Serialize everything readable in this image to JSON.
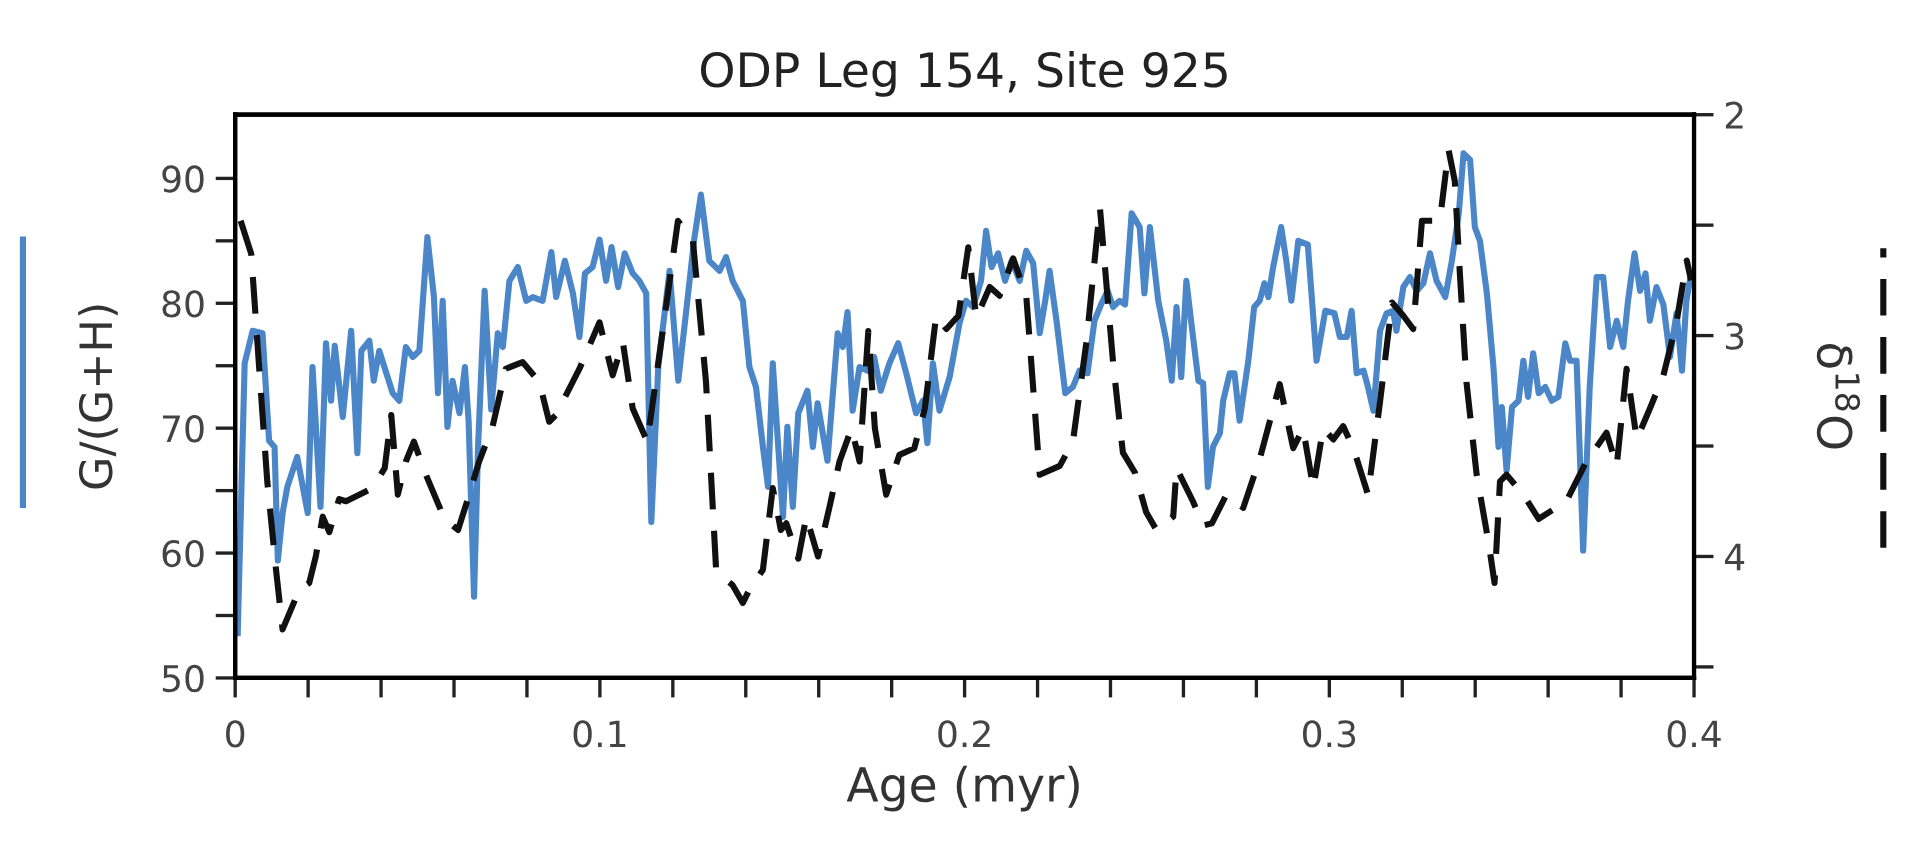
{
  "chart_data": {
    "type": "line",
    "title": "ODP Leg 154, Site 925",
    "xlabel": "Age (myr)",
    "ylabel": "G/(G+H)",
    "y2label": "δ$^{18}$O",
    "xlim": [
      0,
      0.4
    ],
    "xticks": [
      0,
      {
        "value": 0.02,
        "label": null
      },
      {
        "value": 0.04,
        "label": null
      },
      {
        "value": 0.06,
        "label": null
      },
      {
        "value": 0.08,
        "label": null
      },
      0.1,
      {
        "value": 0.12,
        "label": null
      },
      {
        "value": 0.14,
        "label": null
      },
      {
        "value": 0.16,
        "label": null
      },
      {
        "value": 0.18,
        "label": null
      },
      0.2,
      {
        "value": 0.22,
        "label": null
      },
      {
        "value": 0.24,
        "label": null
      },
      {
        "value": 0.26,
        "label": null
      },
      {
        "value": 0.28,
        "label": null
      },
      0.3,
      {
        "value": 0.32,
        "label": null
      },
      {
        "value": 0.34,
        "label": null
      },
      {
        "value": 0.36,
        "label": null
      },
      {
        "value": 0.38,
        "label": null
      },
      0.4
    ],
    "ylim": [
      50,
      95.1
    ],
    "yticks": [
      50,
      {
        "value": 55,
        "label": null
      },
      60,
      {
        "value": 65,
        "label": null
      },
      70,
      {
        "value": 75,
        "label": null
      },
      80,
      {
        "value": 85,
        "label": null
      },
      90
    ],
    "y2lim": [
      4.55,
      2
    ],
    "y2ticks": [
      2,
      {
        "value": 2.5,
        "label": null
      },
      3,
      {
        "value": 3.5,
        "label": null
      },
      4,
      {
        "value": 4.5,
        "label": null
      }
    ],
    "grid": false,
    "legend": false,
    "marker": "none",
    "series": [
      {
        "color": "#4a86c8",
        "axis": "y",
        "line_style": "solid",
        "x": [
          0.0007,
          0.0026,
          0.0048,
          0.0075,
          0.0093,
          0.0108,
          0.0117,
          0.013,
          0.0143,
          0.017,
          0.0199,
          0.0212,
          0.0234,
          0.0249,
          0.0263,
          0.0273,
          0.0295,
          0.0318,
          0.0335,
          0.0346,
          0.0368,
          0.038,
          0.0395,
          0.0432,
          0.045,
          0.0468,
          0.0487,
          0.0505,
          0.0527,
          0.0545,
          0.0556,
          0.0569,
          0.0582,
          0.0596,
          0.0615,
          0.063,
          0.064,
          0.0655,
          0.0666,
          0.0684,
          0.0702,
          0.072,
          0.0734,
          0.0752,
          0.0775,
          0.0798,
          0.0816,
          0.0843,
          0.0867,
          0.088,
          0.0904,
          0.0926,
          0.0944,
          0.0959,
          0.098,
          0.0999,
          0.1017,
          0.1032,
          0.105,
          0.1068,
          0.109,
          0.1108,
          0.1127,
          0.1141,
          0.116,
          0.1191,
          0.1215,
          0.1236,
          0.1258,
          0.1277,
          0.13,
          0.1328,
          0.1346,
          0.1364,
          0.1392,
          0.141,
          0.1428,
          0.1447,
          0.1461,
          0.1474,
          0.1489,
          0.1502,
          0.1514,
          0.1529,
          0.1544,
          0.1569,
          0.1584,
          0.1597,
          0.1624,
          0.1652,
          0.1666,
          0.1679,
          0.1693,
          0.1712,
          0.1734,
          0.1752,
          0.177,
          0.1794,
          0.1818,
          0.184,
          0.1867,
          0.1886,
          0.1898,
          0.1913,
          0.1931,
          0.1959,
          0.1986,
          0.2004,
          0.2023,
          0.2045,
          0.2059,
          0.2074,
          0.2092,
          0.2111,
          0.2129,
          0.2151,
          0.2169,
          0.2188,
          0.2206,
          0.2221,
          0.2233,
          0.2252,
          0.2276,
          0.2297,
          0.2315,
          0.2337,
          0.2356,
          0.2374,
          0.2392,
          0.2407,
          0.2425,
          0.244,
          0.2458,
          0.248,
          0.2493,
          0.2508,
          0.2531,
          0.2553,
          0.2568,
          0.2581,
          0.2594,
          0.2608,
          0.2623,
          0.2641,
          0.2654,
          0.2667,
          0.2681,
          0.27,
          0.2709,
          0.2727,
          0.274,
          0.2754,
          0.2778,
          0.2794,
          0.2809,
          0.2822,
          0.2833,
          0.2846,
          0.2868,
          0.2882,
          0.2896,
          0.2915,
          0.2941,
          0.2965,
          0.2989,
          0.3014,
          0.3029,
          0.3048,
          0.3061,
          0.3075,
          0.3094,
          0.3106,
          0.3121,
          0.3139,
          0.3157,
          0.3175,
          0.3184,
          0.3203,
          0.3221,
          0.324,
          0.3258,
          0.3276,
          0.3294,
          0.3318,
          0.3336,
          0.3355,
          0.3368,
          0.3386,
          0.3399,
          0.3413,
          0.3432,
          0.345,
          0.3464,
          0.3473,
          0.3486,
          0.3501,
          0.3519,
          0.3532,
          0.3545,
          0.3559,
          0.3574,
          0.3592,
          0.361,
          0.3628,
          0.3647,
          0.366,
          0.3678,
          0.3696,
          0.3714,
          0.3733,
          0.3751,
          0.377,
          0.3788,
          0.3806,
          0.3819,
          0.3837,
          0.3852,
          0.3867,
          0.3879,
          0.3897,
          0.3916,
          0.3934,
          0.3952,
          0.3967,
          0.3979,
          0.3992
        ],
        "values": [
          53.6,
          75.2,
          77.8,
          77.6,
          69.0,
          68.5,
          59.4,
          63.2,
          65.3,
          67.7,
          63.2,
          74.9,
          63.7,
          76.8,
          72.2,
          76.6,
          70.9,
          77.8,
          68.0,
          76.2,
          77.0,
          73.8,
          76.2,
          72.8,
          72.2,
          76.5,
          75.7,
          76.2,
          85.3,
          80.5,
          72.8,
          80.2,
          70.1,
          73.8,
          71.2,
          74.9,
          70.6,
          56.5,
          68.5,
          81.0,
          71.5,
          77.6,
          76.5,
          81.8,
          82.9,
          80.2,
          80.5,
          80.2,
          84.1,
          80.5,
          83.4,
          80.8,
          77.3,
          82.4,
          82.9,
          85.1,
          81.8,
          84.5,
          81.3,
          84.0,
          82.4,
          81.8,
          80.8,
          62.5,
          74.9,
          82.6,
          73.8,
          79.2,
          85.0,
          88.7,
          83.4,
          82.6,
          83.7,
          81.8,
          80.2,
          74.9,
          73.3,
          68.5,
          65.3,
          75.2,
          68.5,
          62.9,
          70.1,
          63.7,
          71.2,
          73.0,
          68.5,
          72.0,
          67.4,
          77.6,
          76.5,
          79.3,
          71.4,
          74.9,
          74.6,
          75.7,
          73.0,
          75.2,
          76.8,
          74.4,
          71.2,
          72.2,
          68.8,
          75.2,
          71.4,
          74.1,
          78.4,
          80.2,
          79.7,
          81.8,
          85.8,
          82.9,
          84.0,
          81.8,
          83.4,
          81.8,
          84.2,
          83.2,
          77.6,
          80.2,
          82.6,
          78.6,
          72.8,
          73.3,
          74.6,
          74.4,
          78.6,
          79.9,
          81.0,
          79.7,
          80.2,
          79.9,
          87.2,
          86.1,
          80.8,
          86.1,
          80.2,
          77.0,
          73.8,
          79.7,
          74.1,
          81.8,
          78.1,
          73.8,
          73.6,
          65.3,
          68.5,
          69.6,
          72.2,
          74.4,
          74.4,
          70.6,
          75.4,
          79.7,
          80.2,
          81.6,
          80.5,
          82.9,
          86.1,
          83.4,
          80.2,
          85.0,
          84.7,
          75.4,
          79.4,
          79.2,
          77.3,
          77.3,
          79.4,
          74.4,
          74.6,
          73.3,
          71.4,
          77.8,
          79.2,
          79.4,
          77.8,
          81.3,
          82.1,
          81.0,
          81.6,
          84.0,
          81.8,
          80.5,
          83.4,
          87.2,
          92.0,
          91.5,
          86.1,
          85.0,
          80.8,
          74.9,
          68.5,
          71.7,
          66.6,
          71.7,
          72.2,
          75.4,
          72.5,
          76.0,
          72.8,
          73.3,
          72.2,
          72.5,
          76.8,
          75.4,
          75.4,
          60.2,
          73.3,
          82.1,
          82.1,
          76.5,
          78.6,
          76.5,
          80.2,
          84.0,
          81.0,
          82.4,
          78.6,
          81.3,
          79.9,
          75.7,
          79.2,
          74.6,
          80.2,
          82.4
        ]
      },
      {
        "color": "#111111",
        "axis": "y2",
        "line_style": "dashed",
        "x": [
          0.0015,
          0.0044,
          0.0066,
          0.0088,
          0.0112,
          0.013,
          0.0176,
          0.0203,
          0.0221,
          0.024,
          0.0258,
          0.0285,
          0.0304,
          0.0377,
          0.041,
          0.0428,
          0.0446,
          0.0468,
          0.049,
          0.0523,
          0.0574,
          0.0611,
          0.0636,
          0.0669,
          0.0706,
          0.0742,
          0.0788,
          0.0834,
          0.0861,
          0.0879,
          0.0944,
          0.0999,
          0.1035,
          0.1063,
          0.109,
          0.113,
          0.1173,
          0.1214,
          0.1255,
          0.1291,
          0.1319,
          0.1364,
          0.1392,
          0.141,
          0.1447,
          0.1474,
          0.1496,
          0.1511,
          0.1544,
          0.1566,
          0.1598,
          0.1629,
          0.1657,
          0.169,
          0.1712,
          0.1736,
          0.1754,
          0.1785,
          0.1821,
          0.1862,
          0.1891,
          0.1922,
          0.195,
          0.1983,
          0.201,
          0.2032,
          0.2069,
          0.2096,
          0.2133,
          0.2169,
          0.2206,
          0.2261,
          0.2297,
          0.2334,
          0.2371,
          0.2407,
          0.2434,
          0.2467,
          0.2498,
          0.2526,
          0.2572,
          0.2581,
          0.2626,
          0.2654,
          0.2678,
          0.2718,
          0.2764,
          0.2809,
          0.2864,
          0.2901,
          0.2928,
          0.2956,
          0.2983,
          0.3011,
          0.3038,
          0.3066,
          0.3106,
          0.3139,
          0.3172,
          0.3203,
          0.323,
          0.3254,
          0.3303,
          0.3327,
          0.3344,
          0.3358,
          0.3376,
          0.3404,
          0.3437,
          0.3453,
          0.3468,
          0.3486,
          0.3532,
          0.3574,
          0.365,
          0.3705,
          0.376,
          0.3788,
          0.3815,
          0.3843,
          0.3879,
          0.3916,
          0.3952,
          0.398,
          0.3992
        ],
        "values": [
          2.48,
          2.63,
          3.15,
          3.66,
          4.06,
          4.33,
          4.15,
          4.12,
          4.0,
          3.82,
          3.89,
          3.74,
          3.75,
          3.69,
          3.6,
          3.36,
          3.72,
          3.57,
          3.48,
          3.63,
          3.83,
          3.88,
          3.75,
          3.57,
          3.41,
          3.15,
          3.12,
          3.21,
          3.39,
          3.36,
          3.15,
          2.94,
          3.18,
          3.03,
          3.33,
          3.48,
          2.97,
          2.48,
          2.57,
          3.21,
          4.07,
          4.13,
          4.21,
          4.15,
          4.06,
          3.69,
          3.88,
          3.85,
          4.01,
          3.82,
          4.0,
          3.78,
          3.57,
          3.42,
          3.57,
          2.98,
          3.42,
          3.72,
          3.54,
          3.51,
          3.33,
          2.91,
          2.97,
          2.91,
          2.6,
          2.92,
          2.78,
          2.82,
          2.65,
          2.82,
          3.63,
          3.59,
          3.48,
          3.03,
          2.42,
          3.12,
          3.53,
          3.62,
          3.8,
          3.88,
          3.82,
          3.6,
          3.75,
          3.86,
          3.85,
          3.72,
          3.78,
          3.56,
          3.22,
          3.51,
          3.42,
          3.69,
          3.42,
          3.47,
          3.41,
          3.51,
          3.72,
          3.3,
          2.85,
          2.91,
          2.97,
          2.48,
          2.48,
          2.16,
          2.3,
          2.72,
          3.21,
          3.63,
          3.94,
          4.12,
          3.66,
          3.63,
          3.72,
          3.83,
          3.75,
          3.57,
          3.44,
          3.59,
          3.15,
          3.47,
          3.33,
          3.18,
          2.94,
          2.66,
          2.75
        ]
      }
    ]
  }
}
